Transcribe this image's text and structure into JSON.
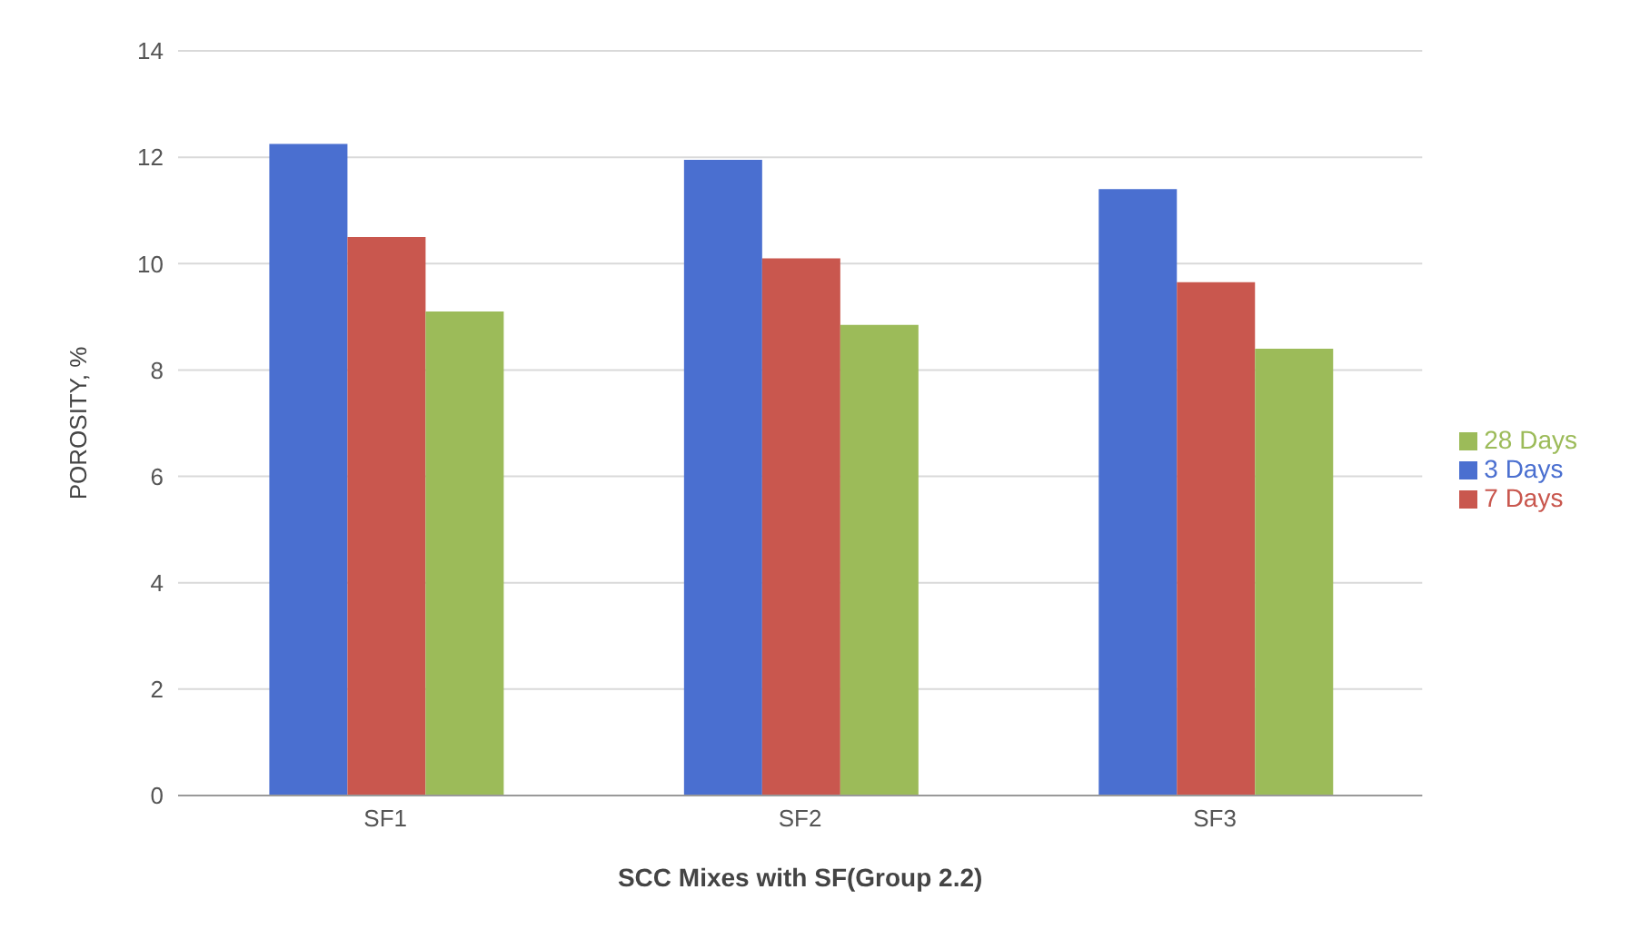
{
  "chart_data": {
    "type": "bar",
    "xlabel": "SCC Mixes with SF(Group 2.2)",
    "ylabel": "POROSITY, %",
    "categories": [
      "SF1",
      "SF2",
      "SF3"
    ],
    "series": [
      {
        "name": "3 Days",
        "color": "#4a6fd0",
        "values": [
          12.25,
          11.95,
          11.4
        ]
      },
      {
        "name": "7 Days",
        "color": "#c9574e",
        "values": [
          10.5,
          10.1,
          9.65
        ]
      },
      {
        "name": "28 Days",
        "color": "#9cbb59",
        "values": [
          9.1,
          8.85,
          8.4
        ]
      }
    ],
    "ylim": [
      0,
      14
    ],
    "yticks": [
      0,
      2,
      4,
      6,
      8,
      10,
      12,
      14
    ],
    "grid": "y",
    "legend": "right"
  }
}
